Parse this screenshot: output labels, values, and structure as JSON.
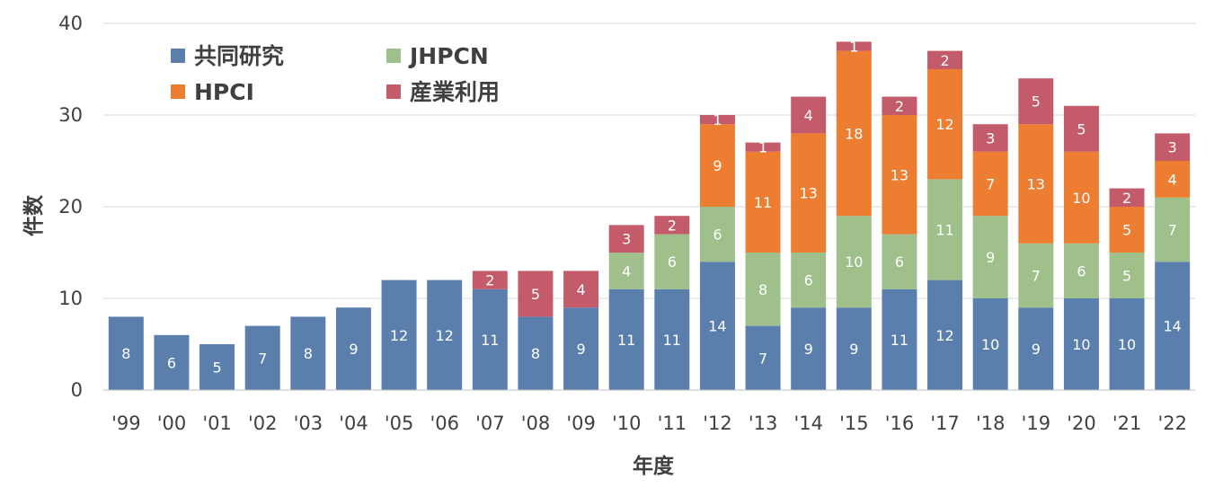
{
  "chart_data": {
    "type": "bar",
    "stacked": true,
    "title": "",
    "xlabel": "年度",
    "ylabel": "件数",
    "ylim": [
      0,
      40
    ],
    "yticks": [
      0,
      10,
      20,
      30,
      40
    ],
    "grid": true,
    "legend_position": "top-left",
    "categories": [
      "'99",
      "'00",
      "'01",
      "'02",
      "'03",
      "'04",
      "'05",
      "'06",
      "'07",
      "'08",
      "'09",
      "'10",
      "'11",
      "'12",
      "'13",
      "'14",
      "'15",
      "'16",
      "'17",
      "'18",
      "'19",
      "'20",
      "'21",
      "'22"
    ],
    "series": [
      {
        "name": "共同研究",
        "color": "#5b7fac",
        "values": [
          8,
          6,
          5,
          7,
          8,
          9,
          12,
          12,
          11,
          8,
          9,
          11,
          11,
          14,
          7,
          9,
          9,
          11,
          12,
          10,
          9,
          10,
          10,
          14
        ]
      },
      {
        "name": "JHPCN",
        "color": "#a0c08b",
        "values": [
          0,
          0,
          0,
          0,
          0,
          0,
          0,
          0,
          0,
          0,
          0,
          4,
          6,
          6,
          8,
          6,
          10,
          6,
          11,
          9,
          7,
          6,
          5,
          7
        ]
      },
      {
        "name": "HPCI",
        "color": "#ed7d31",
        "values": [
          0,
          0,
          0,
          0,
          0,
          0,
          0,
          0,
          0,
          0,
          0,
          0,
          0,
          9,
          11,
          13,
          18,
          13,
          12,
          7,
          13,
          10,
          5,
          4
        ]
      },
      {
        "name": "産業利用",
        "color": "#c45b6b",
        "values": [
          0,
          0,
          0,
          0,
          0,
          0,
          0,
          0,
          2,
          5,
          4,
          3,
          2,
          1,
          1,
          4,
          1,
          2,
          2,
          3,
          5,
          5,
          2,
          3
        ]
      }
    ]
  }
}
